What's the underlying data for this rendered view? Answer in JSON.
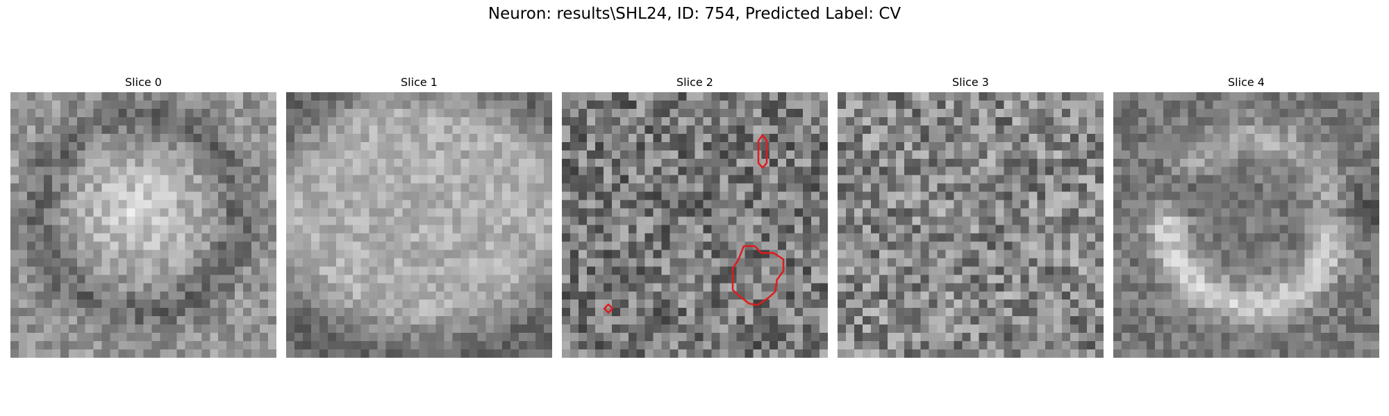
{
  "figure": {
    "title": "Neuron: results\\SHL24, ID: 754, Predicted Label: CV"
  },
  "panels": [
    {
      "title": "Slice 0"
    },
    {
      "title": "Slice 1"
    },
    {
      "title": "Slice 2"
    },
    {
      "title": "Slice 3"
    },
    {
      "title": "Slice 4"
    }
  ],
  "colormap": "gray",
  "contour_color": "#e01b1b"
}
